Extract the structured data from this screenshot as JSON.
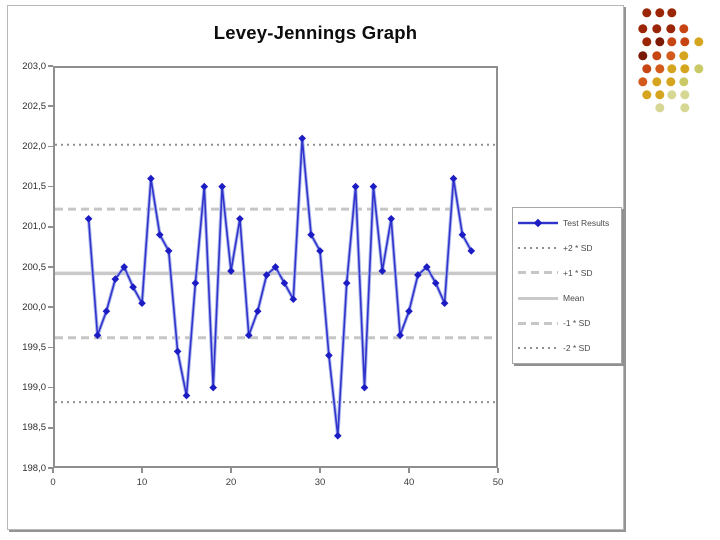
{
  "slide": {
    "background": "#ffffff"
  },
  "chart": {
    "y_axis": {
      "ticks": [
        {
          "label": "203,0",
          "value": 203.0
        },
        {
          "label": "202,5",
          "value": 202.5
        },
        {
          "label": "202,0",
          "value": 202.0
        },
        {
          "label": "201,5",
          "value": 201.5
        },
        {
          "label": "201,0",
          "value": 201.0
        },
        {
          "label": "200,5",
          "value": 200.5
        },
        {
          "label": "200,0",
          "value": 200.0
        },
        {
          "label": "199,5",
          "value": 199.5
        },
        {
          "label": "199,0",
          "value": 199.0
        },
        {
          "label": "198,5",
          "value": 198.5
        },
        {
          "label": "198,0",
          "value": 198.0
        }
      ]
    },
    "x_axis": {
      "ticks": [
        {
          "label": "0",
          "value": 0
        },
        {
          "label": "10",
          "value": 10
        },
        {
          "label": "20",
          "value": 20
        },
        {
          "label": "30",
          "value": 30
        },
        {
          "label": "40",
          "value": 40
        },
        {
          "label": "50",
          "value": 50
        }
      ]
    }
  },
  "chart_data": {
    "type": "line",
    "title": "Levey-Jennings Graph",
    "xlim": [
      0,
      50
    ],
    "ylim": [
      198.0,
      203.0
    ],
    "x_tick_step": 10,
    "y_tick_step": 0.5,
    "grid": false,
    "legend_position": "right",
    "decimal_separator": ",",
    "series": [
      {
        "name": "Test Results",
        "x": [
          4,
          5,
          6,
          7,
          8,
          9,
          10,
          11,
          12,
          13,
          14,
          15,
          16,
          17,
          18,
          19,
          20,
          21,
          22,
          23,
          24,
          25,
          26,
          27,
          28,
          29,
          30,
          31,
          32,
          33,
          34,
          35,
          36,
          37,
          38,
          39,
          40,
          41,
          42,
          43,
          44,
          45,
          46,
          47
        ],
        "values": [
          201.1,
          199.65,
          199.95,
          200.35,
          200.5,
          200.25,
          200.05,
          201.6,
          200.9,
          200.7,
          199.45,
          198.9,
          200.3,
          201.5,
          199.0,
          201.5,
          200.45,
          201.1,
          199.65,
          199.95,
          200.4,
          200.5,
          200.3,
          200.1,
          202.1,
          200.9,
          200.7,
          199.4,
          198.4,
          200.3,
          201.5,
          199.0,
          201.5,
          200.45,
          201.1,
          199.65,
          199.95,
          200.4,
          200.5,
          200.3,
          200.05,
          201.6,
          200.9,
          200.7
        ]
      }
    ],
    "reference_lines": [
      {
        "label": "+2 * SD",
        "value": 202.02,
        "style": "dotted"
      },
      {
        "label": "+1 * SD",
        "value": 201.22,
        "style": "dashed"
      },
      {
        "label": "Mean",
        "value": 200.42,
        "style": "solid"
      },
      {
        "label": "-1 * SD",
        "value": 199.62,
        "style": "dashed"
      },
      {
        "label": "-2 * SD",
        "value": 198.82,
        "style": "dotted"
      }
    ]
  },
  "legend": {
    "items": [
      {
        "label": "Test Results",
        "swatch": "series"
      },
      {
        "label": "+2 * SD",
        "swatch": "dotted"
      },
      {
        "label": "+1 * SD",
        "swatch": "dashed"
      },
      {
        "label": "Mean",
        "swatch": "solid"
      },
      {
        "label": "-1 * SD",
        "swatch": "dashed"
      },
      {
        "label": "-2 * SD",
        "swatch": "dotted"
      }
    ]
  },
  "colors": {
    "series_line": "#3232cc",
    "series_marker": "#1c1cc4",
    "series_halo": "#aab7eb",
    "ref_dotted": "#8f8f8f",
    "ref_dashed": "#c6c6c6",
    "ref_solid": "#c9c9c9",
    "axis": "#8f8f8f",
    "tick_label": "#2e2e2e",
    "legend_text": "#4a4a4a"
  },
  "decoration": {
    "palette": {
      "darkred": "#9b2507",
      "maroon": "#7a1904",
      "red": "#c64512",
      "orange": "#d25a1b",
      "gold": "#d6a51f",
      "olive": "#c9c968",
      "pale": "#d7d794"
    },
    "dots": [
      [
        647,
        13,
        "darkred"
      ],
      [
        660,
        13,
        "darkred"
      ],
      [
        672,
        13,
        "darkred"
      ],
      [
        643,
        29,
        "darkred"
      ],
      [
        657,
        29,
        "darkred"
      ],
      [
        671,
        29,
        "darkred"
      ],
      [
        684,
        29,
        "red"
      ],
      [
        647,
        42,
        "darkred"
      ],
      [
        660,
        42,
        "maroon"
      ],
      [
        672,
        42,
        "red"
      ],
      [
        685,
        42,
        "red"
      ],
      [
        699,
        42,
        "gold"
      ],
      [
        643,
        56,
        "maroon"
      ],
      [
        657,
        56,
        "red"
      ],
      [
        671,
        56,
        "orange"
      ],
      [
        684,
        56,
        "gold"
      ],
      [
        647,
        69,
        "red"
      ],
      [
        660,
        69,
        "orange"
      ],
      [
        672,
        69,
        "gold"
      ],
      [
        685,
        69,
        "gold"
      ],
      [
        699,
        69,
        "olive"
      ],
      [
        643,
        82,
        "orange"
      ],
      [
        657,
        82,
        "gold"
      ],
      [
        671,
        82,
        "gold"
      ],
      [
        684,
        82,
        "olive"
      ],
      [
        647,
        95,
        "gold"
      ],
      [
        660,
        95,
        "gold"
      ],
      [
        672,
        95,
        "pale"
      ],
      [
        685,
        95,
        "pale"
      ],
      [
        660,
        108,
        "pale"
      ],
      [
        685,
        108,
        "pale"
      ]
    ]
  }
}
